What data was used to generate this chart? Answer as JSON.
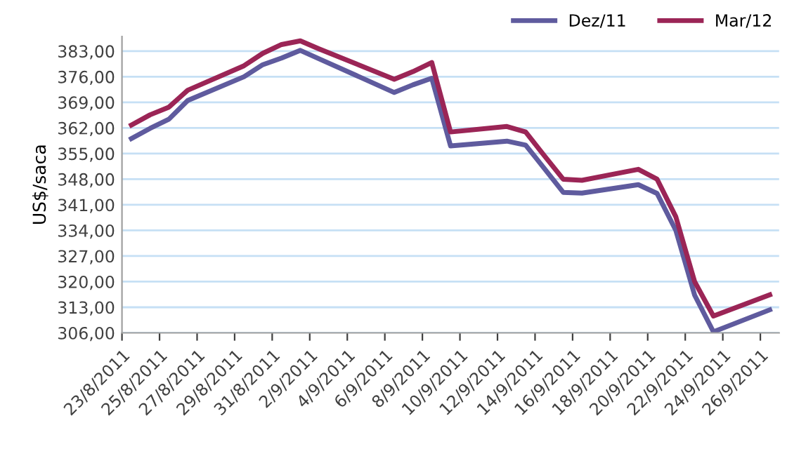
{
  "chart_data": {
    "type": "line",
    "ylabel": "US$/saca",
    "x": [
      "2011-08-23T12:00",
      "2011-08-24T12:00",
      "2011-08-25T12:00",
      "2011-08-26T12:00",
      "2011-08-29T12:00",
      "2011-08-30T12:00",
      "2011-08-31T12:00",
      "2011-09-01T12:00",
      "2011-09-02T12:00",
      "2011-09-06T12:00",
      "2011-09-07T12:00",
      "2011-09-08T12:00",
      "2011-09-09T12:00",
      "2011-09-12T12:00",
      "2011-09-13T12:00",
      "2011-09-14T12:00",
      "2011-09-15T12:00",
      "2011-09-16T12:00",
      "2011-09-19T12:00",
      "2011-09-20T12:00",
      "2011-09-21T12:00",
      "2011-09-22T12:00",
      "2011-09-23T12:00",
      "2011-09-26T12:00"
    ],
    "series": [
      {
        "name": "Dez/11",
        "color": "#5f5b9e",
        "values": [
          359.1,
          361.9,
          364.4,
          369.5,
          376.0,
          379.3,
          381.1,
          383.2,
          380.9,
          371.7,
          373.8,
          375.6,
          357.1,
          358.4,
          357.3,
          350.9,
          344.4,
          344.2,
          346.5,
          344.1,
          334.0,
          316.3,
          306.3,
          312.3
        ]
      },
      {
        "name": "Mar/12",
        "color": "#9b2556",
        "values": [
          362.8,
          365.6,
          367.7,
          372.3,
          379.0,
          382.4,
          384.8,
          385.8,
          383.6,
          375.3,
          377.4,
          379.9,
          360.9,
          362.4,
          360.9,
          354.4,
          348.0,
          347.7,
          350.7,
          348.0,
          337.7,
          320.0,
          310.6,
          316.4
        ]
      }
    ],
    "xlim": [
      "2011-08-23",
      "2011-09-27"
    ],
    "xticks": [
      {
        "value": "2011-08-23",
        "label": "23/8/2011"
      },
      {
        "value": "2011-08-25",
        "label": "25/8/2011"
      },
      {
        "value": "2011-08-27",
        "label": "27/8/2011"
      },
      {
        "value": "2011-08-29",
        "label": "29/8/2011"
      },
      {
        "value": "2011-08-31",
        "label": "31/8/2011"
      },
      {
        "value": "2011-09-02",
        "label": "2/9/2011"
      },
      {
        "value": "2011-09-04",
        "label": "4/9/2011"
      },
      {
        "value": "2011-09-06",
        "label": "6/9/2011"
      },
      {
        "value": "2011-09-08",
        "label": "8/9/2011"
      },
      {
        "value": "2011-09-10",
        "label": "10/9/2011"
      },
      {
        "value": "2011-09-12",
        "label": "12/9/2011"
      },
      {
        "value": "2011-09-14",
        "label": "14/9/2011"
      },
      {
        "value": "2011-09-16",
        "label": "16/9/2011"
      },
      {
        "value": "2011-09-18",
        "label": "18/9/2011"
      },
      {
        "value": "2011-09-20",
        "label": "20/9/2011"
      },
      {
        "value": "2011-09-22",
        "label": "22/9/2011"
      },
      {
        "value": "2011-09-24",
        "label": "24/9/2011"
      },
      {
        "value": "2011-09-26",
        "label": "26/9/2011"
      }
    ],
    "ylim": [
      306,
      387
    ],
    "yticks": [
      {
        "value": 306,
        "label": "306,00"
      },
      {
        "value": 313,
        "label": "313,00"
      },
      {
        "value": 320,
        "label": "320,00"
      },
      {
        "value": 327,
        "label": "327,00"
      },
      {
        "value": 334,
        "label": "334,00"
      },
      {
        "value": 341,
        "label": "341,00"
      },
      {
        "value": 348,
        "label": "348,00"
      },
      {
        "value": 355,
        "label": "355,00"
      },
      {
        "value": 362,
        "label": "362,00"
      },
      {
        "value": 369,
        "label": "369,00"
      },
      {
        "value": 376,
        "label": "376,00"
      },
      {
        "value": 383,
        "label": "383,00"
      }
    ],
    "grid": "y",
    "legend": "top right",
    "marker": "none",
    "line_style": "solid"
  }
}
